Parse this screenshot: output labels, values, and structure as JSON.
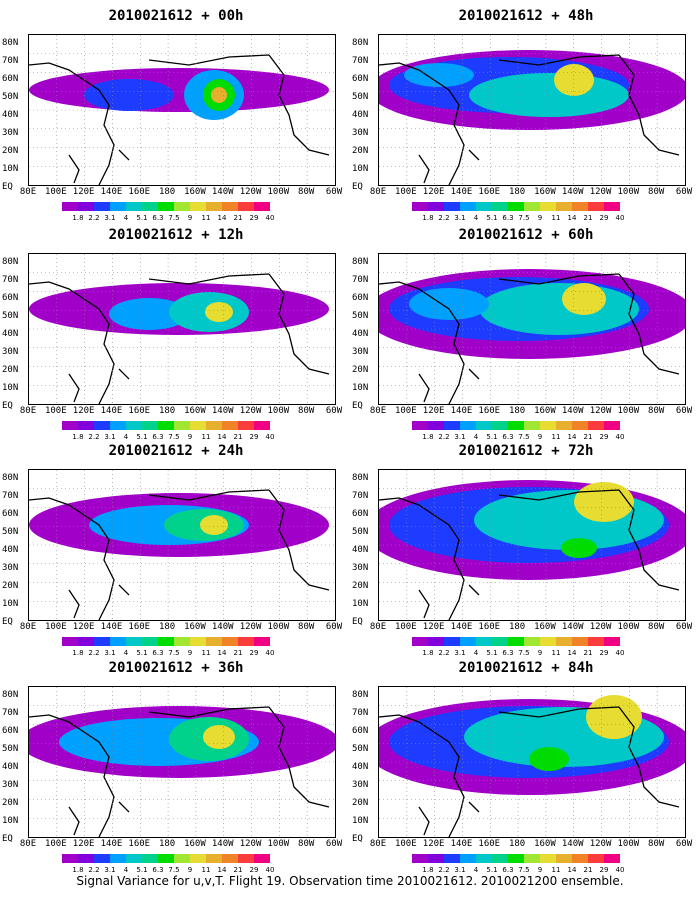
{
  "footer": {
    "caption": "Signal Variance for u,v,T. Flight 19. Observation time 2010021612. 2010021200 ensemble."
  },
  "latitude_labels": [
    "80N",
    "70N",
    "60N",
    "50N",
    "40N",
    "30N",
    "20N",
    "10N",
    "EQ"
  ],
  "longitude_labels": [
    "80E",
    "100E",
    "120E",
    "140E",
    "160E",
    "180",
    "160W",
    "140W",
    "120W",
    "100W",
    "80W",
    "60W"
  ],
  "colorbar": {
    "labels": [
      "1.8",
      "2.2",
      "3.1",
      "4",
      "5.1",
      "6.3",
      "7.5",
      "9",
      "11",
      "14",
      "21",
      "29",
      "40"
    ],
    "colors": [
      "#a000c8",
      "#8200dc",
      "#1e3cff",
      "#00a0ff",
      "#00c8c8",
      "#00d28c",
      "#00dc00",
      "#a0e632",
      "#e6dc32",
      "#e6af2d",
      "#f08228",
      "#fa3c3c",
      "#f00082"
    ]
  },
  "panels": [
    {
      "title": "2010021612 + 00h",
      "forecast_hour": 0
    },
    {
      "title": "2010021612 + 48h",
      "forecast_hour": 48
    },
    {
      "title": "2010021612 + 12h",
      "forecast_hour": 12
    },
    {
      "title": "2010021612 + 60h",
      "forecast_hour": 60
    },
    {
      "title": "2010021612 + 24h",
      "forecast_hour": 24
    },
    {
      "title": "2010021612 + 72h",
      "forecast_hour": 72
    },
    {
      "title": "2010021612 + 36h",
      "forecast_hour": 36
    },
    {
      "title": "2010021612 + 84h",
      "forecast_hour": 84
    }
  ]
}
